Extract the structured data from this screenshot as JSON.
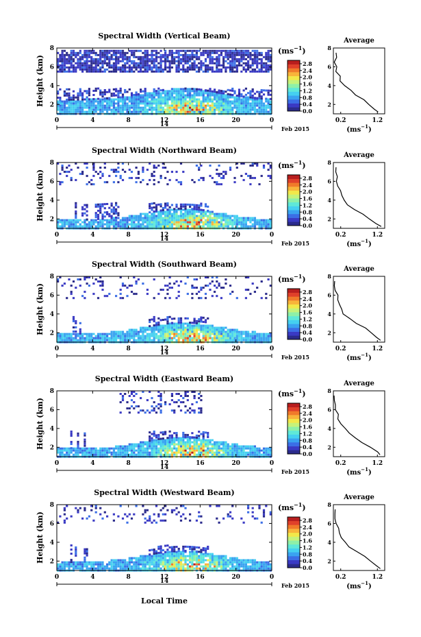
{
  "figure": {
    "date_label": "Feb 2015",
    "x_day_label": "14",
    "xlabel": "Local Time",
    "colorbar_unit": "(ms",
    "colorbar_unit_exp": "−1",
    "colorbar_unit_close": ")",
    "avg_title": "Average",
    "avg_unit": "(ms",
    "avg_unit_exp": "−1",
    "avg_unit_close": ")",
    "colorbar_ticks": [
      "0.0",
      "0.4",
      "0.8",
      "1.2",
      "1.6",
      "2.0",
      "2.4",
      "2.8"
    ],
    "colorbar_range": [
      0,
      3.0
    ],
    "colormap": [
      "#2b2b8c",
      "#3a3ac4",
      "#3b6ee6",
      "#3aa3f0",
      "#45d0f0",
      "#5fe8d8",
      "#8ef0a8",
      "#c6f27a",
      "#f2e84a",
      "#f8b43a",
      "#f07a2a",
      "#e0402a",
      "#b81e1e"
    ]
  },
  "chart_data": [
    {
      "type": "heatmap",
      "title": "Spectral Width (Vertical Beam)",
      "ylabel": "Height (km)",
      "x_ticks": [
        "0",
        "4",
        "8",
        "12",
        "16",
        "20",
        "0"
      ],
      "y_ticks": [
        "2",
        "4",
        "6",
        "8"
      ],
      "xlim": [
        0,
        24
      ],
      "ylim": [
        1,
        8
      ],
      "avg_x_ticks": [
        "0.2",
        "1.2"
      ],
      "avg_xlim": [
        0,
        1.4
      ],
      "avg_ylim": [
        1,
        8
      ],
      "avg_y_ticks": [
        "2",
        "4",
        "6",
        "8"
      ],
      "avg_profile": {
        "height_km": [
          1.2,
          1.5,
          2.0,
          2.5,
          3.0,
          3.5,
          4.0,
          4.5,
          5.0,
          5.5,
          6.0,
          6.5,
          7.0,
          7.5
        ],
        "width_ms": [
          1.25,
          1.15,
          0.95,
          0.8,
          0.62,
          0.45,
          0.3,
          0.22,
          0.15,
          0.1,
          0.08,
          0.06,
          0.05,
          0.04
        ]
      }
    },
    {
      "type": "heatmap",
      "title": "Spectral Width (Northward Beam)",
      "ylabel": "Height (km)",
      "x_ticks": [
        "0",
        "4",
        "8",
        "12",
        "16",
        "20",
        "0"
      ],
      "y_ticks": [
        "2",
        "4",
        "6",
        "8"
      ],
      "xlim": [
        0,
        24
      ],
      "ylim": [
        1,
        8
      ],
      "avg_x_ticks": [
        "0.2",
        "1.2"
      ],
      "avg_xlim": [
        0,
        1.4
      ],
      "avg_ylim": [
        1,
        8
      ],
      "avg_y_ticks": [
        "2",
        "4",
        "6",
        "8"
      ],
      "avg_profile": {
        "height_km": [
          1.2,
          1.5,
          2.0,
          2.5,
          3.0,
          3.5,
          4.0,
          4.5,
          5.0,
          5.5,
          6.0,
          6.5,
          7.0,
          7.5
        ],
        "width_ms": [
          1.3,
          1.2,
          1.0,
          0.82,
          0.6,
          0.42,
          0.3,
          0.22,
          0.16,
          0.12,
          0.09,
          0.07,
          0.05,
          0.04
        ]
      }
    },
    {
      "type": "heatmap",
      "title": "Spectral Width (Southward Beam)",
      "ylabel": "Height (km)",
      "x_ticks": [
        "0",
        "4",
        "8",
        "12",
        "16",
        "20",
        "0"
      ],
      "y_ticks": [
        "2",
        "4",
        "6",
        "8"
      ],
      "xlim": [
        0,
        24
      ],
      "ylim": [
        1,
        8
      ],
      "avg_x_ticks": [
        "0.2",
        "1.2"
      ],
      "avg_xlim": [
        0,
        1.4
      ],
      "avg_ylim": [
        1,
        8
      ],
      "avg_y_ticks": [
        "2",
        "4",
        "6",
        "8"
      ],
      "avg_profile": {
        "height_km": [
          1.2,
          1.5,
          2.0,
          2.5,
          3.0,
          3.5,
          4.0,
          4.5,
          5.0,
          5.5,
          6.0,
          6.5,
          7.0,
          7.5
        ],
        "width_ms": [
          1.32,
          1.22,
          1.02,
          0.85,
          0.62,
          0.44,
          0.3,
          0.22,
          0.16,
          0.12,
          0.09,
          0.07,
          0.05,
          0.04
        ]
      }
    },
    {
      "type": "heatmap",
      "title": "Spectral Width (Eastward Beam)",
      "ylabel": "Height (km)",
      "x_ticks": [
        "0",
        "4",
        "8",
        "12",
        "16",
        "20",
        "0"
      ],
      "y_ticks": [
        "2",
        "4",
        "6",
        "8"
      ],
      "xlim": [
        0,
        24
      ],
      "ylim": [
        1,
        8
      ],
      "avg_x_ticks": [
        "0.2",
        "1.2"
      ],
      "avg_xlim": [
        0,
        1.4
      ],
      "avg_ylim": [
        1,
        8
      ],
      "avg_y_ticks": [
        "2",
        "4",
        "6",
        "8"
      ],
      "avg_profile": {
        "height_km": [
          1.2,
          1.5,
          2.0,
          2.5,
          3.0,
          3.5,
          4.0,
          4.5,
          5.0,
          5.5,
          6.0,
          6.5,
          7.0,
          7.5
        ],
        "width_ms": [
          1.3,
          1.22,
          1.0,
          0.8,
          0.6,
          0.42,
          0.3,
          0.22,
          0.15,
          0.11,
          0.08,
          0.06,
          0.05,
          0.04
        ]
      }
    },
    {
      "type": "heatmap",
      "title": "Spectral Width (Westward Beam)",
      "ylabel": "Height (km)",
      "x_ticks": [
        "0",
        "4",
        "8",
        "12",
        "16",
        "20",
        "0"
      ],
      "y_ticks": [
        "2",
        "4",
        "6",
        "8"
      ],
      "xlim": [
        0,
        24
      ],
      "ylim": [
        1,
        8
      ],
      "avg_x_ticks": [
        "0.2",
        "1.2"
      ],
      "avg_xlim": [
        0,
        1.4
      ],
      "avg_ylim": [
        1,
        8
      ],
      "avg_y_ticks": [
        "2",
        "4",
        "6",
        "8"
      ],
      "avg_profile": {
        "height_km": [
          1.2,
          1.5,
          2.0,
          2.5,
          3.0,
          3.5,
          4.0,
          4.5,
          5.0,
          5.5,
          6.0,
          6.5,
          7.0,
          7.5
        ],
        "width_ms": [
          1.28,
          1.2,
          1.0,
          0.82,
          0.62,
          0.44,
          0.32,
          0.24,
          0.17,
          0.12,
          0.09,
          0.07,
          0.05,
          0.04
        ]
      }
    }
  ]
}
